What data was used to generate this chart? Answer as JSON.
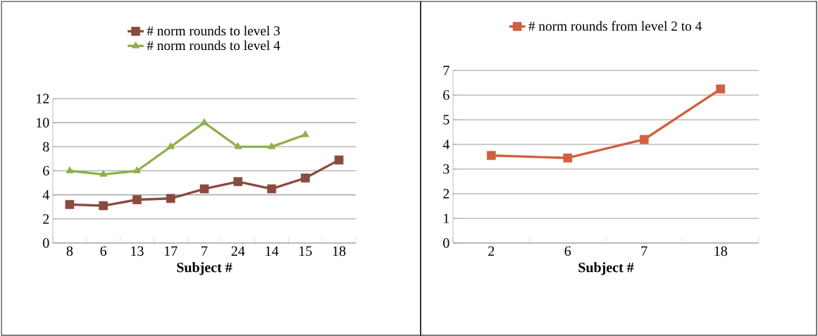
{
  "chart_data": [
    {
      "type": "line",
      "xlabel": "Subject #",
      "categories": [
        "8",
        "6",
        "13",
        "17",
        "7",
        "24",
        "14",
        "15",
        "18"
      ],
      "ylim": [
        0,
        12
      ],
      "yticks": [
        0,
        2,
        4,
        6,
        8,
        10,
        12
      ],
      "grid": "y",
      "legend": "top",
      "series": [
        {
          "name": "# norm rounds to level 3",
          "color": "#8b4a3f",
          "marker": "square",
          "values": [
            3.2,
            3.1,
            3.6,
            3.7,
            4.5,
            5.1,
            4.5,
            5.4,
            6.9
          ]
        },
        {
          "name": "# norm rounds to level 4",
          "color": "#8fb04a",
          "marker": "triangle",
          "values": [
            6,
            5.7,
            6,
            8,
            10,
            8,
            8,
            9,
            null
          ]
        }
      ]
    },
    {
      "type": "line",
      "xlabel": "Subject #",
      "categories": [
        "2",
        "6",
        "7",
        "18"
      ],
      "ylim": [
        0,
        7
      ],
      "yticks": [
        0,
        1,
        2,
        3,
        4,
        5,
        6,
        7
      ],
      "grid": "y",
      "legend": "top",
      "series": [
        {
          "name": "# norm rounds from level 2 to 4",
          "color": "#d0603f",
          "marker": "square",
          "values": [
            3.55,
            3.45,
            4.2,
            6.25
          ]
        }
      ]
    }
  ]
}
